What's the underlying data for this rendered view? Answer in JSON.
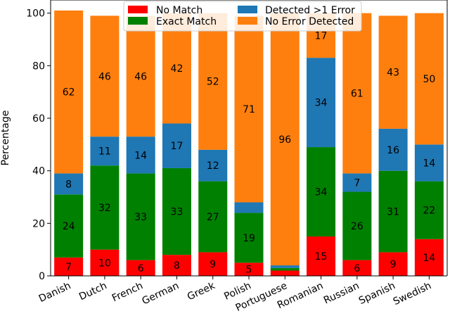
{
  "chart_data": {
    "type": "bar",
    "stacked": true,
    "title": "",
    "xlabel": "",
    "ylabel": "Percentage",
    "ylim": [
      0,
      105
    ],
    "yticks": [
      0,
      20,
      40,
      60,
      80,
      100
    ],
    "grid": false,
    "legend_position": "top-center",
    "categories": [
      "Danish",
      "Dutch",
      "French",
      "German",
      "Greek",
      "Polish",
      "Portuguese",
      "Romanian",
      "Russian",
      "Spanish",
      "Swedish"
    ],
    "series": [
      {
        "name": "No Match",
        "color": "#ff0000",
        "values": [
          7,
          10,
          6,
          8,
          9,
          5,
          2,
          15,
          6,
          9,
          14
        ],
        "labels": [
          "7",
          "10",
          "6",
          "8",
          "9",
          "5",
          "",
          "15",
          "6",
          "9",
          "14"
        ]
      },
      {
        "name": "Exact Match",
        "color": "#008000",
        "values": [
          24,
          32,
          33,
          33,
          27,
          19,
          1,
          34,
          26,
          31,
          22
        ],
        "labels": [
          "24",
          "32",
          "33",
          "33",
          "27",
          "19",
          "",
          "34",
          "26",
          "31",
          "22"
        ]
      },
      {
        "name": "Detected >1 Error",
        "color": "#1f77b4",
        "values": [
          8,
          11,
          14,
          17,
          12,
          4,
          1,
          34,
          7,
          16,
          14
        ],
        "labels": [
          "8",
          "11",
          "14",
          "17",
          "12",
          "",
          "",
          "34",
          "7",
          "16",
          "14"
        ]
      },
      {
        "name": "No Error Detected",
        "color": "#ff7f0e",
        "values": [
          62,
          46,
          46,
          42,
          52,
          71,
          96,
          17,
          61,
          43,
          50
        ],
        "labels": [
          "62",
          "46",
          "46",
          "42",
          "52",
          "71",
          "96",
          "17",
          "61",
          "43",
          "50"
        ]
      }
    ],
    "legend_order": [
      "No Match",
      "Exact Match",
      "Detected >1 Error",
      "No Error Detected"
    ]
  }
}
